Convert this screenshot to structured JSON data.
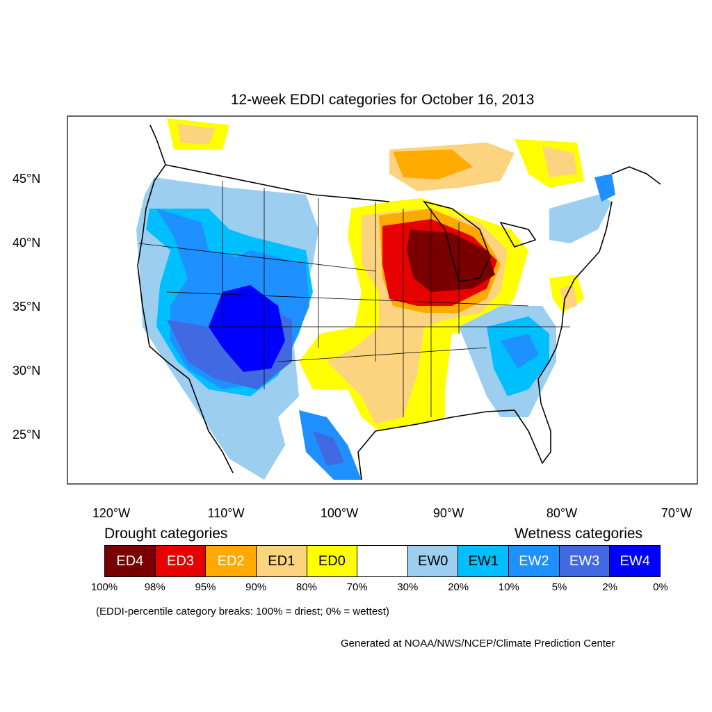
{
  "title": "12-week EDDI categories for October 16, 2013",
  "axes": {
    "lat_ticks": [
      "45°N",
      "40°N",
      "35°N",
      "30°N",
      "25°N"
    ],
    "lon_ticks": [
      "120°W",
      "110°W",
      "100°W",
      "90°W",
      "80°W",
      "70°W"
    ]
  },
  "legend": {
    "drought_heading": "Drought categories",
    "wetness_heading": "Wetness categories",
    "categories": [
      {
        "label": "ED4",
        "color": "#7a0000",
        "text_color": "#ffffff"
      },
      {
        "label": "ED3",
        "color": "#e60000",
        "text_color": "#ffffff"
      },
      {
        "label": "ED2",
        "color": "#ffaa00",
        "text_color": "#ffffff"
      },
      {
        "label": "ED1",
        "color": "#fcd37f",
        "text_color": "#000000"
      },
      {
        "label": "ED0",
        "color": "#ffff00",
        "text_color": "#000000"
      },
      {
        "label": "",
        "color": "#ffffff",
        "text_color": "#000000"
      },
      {
        "label": "EW0",
        "color": "#9ccef0",
        "text_color": "#000000"
      },
      {
        "label": "EW1",
        "color": "#00bfff",
        "text_color": "#000000"
      },
      {
        "label": "EW2",
        "color": "#1e90ff",
        "text_color": "#ffffff"
      },
      {
        "label": "EW3",
        "color": "#4169e1",
        "text_color": "#ffffff"
      },
      {
        "label": "EW4",
        "color": "#0000ff",
        "text_color": "#ffffff"
      }
    ],
    "breaks": [
      "100%",
      "98%",
      "95%",
      "90%",
      "80%",
      "70%",
      "30%",
      "20%",
      "10%",
      "5%",
      "2%",
      "0%"
    ]
  },
  "footnote": "(EDDI-percentile category breaks: 100% = driest; 0% = wettest)",
  "credit": "Generated at NOAA/NWS/NCEP/Climate Prediction Center"
}
